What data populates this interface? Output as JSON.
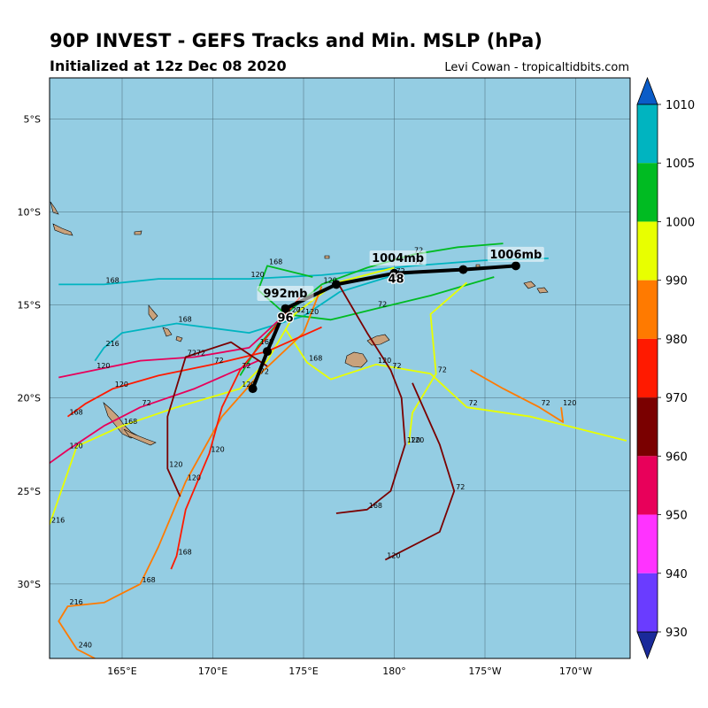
{
  "header": {
    "title": "90P INVEST - GEFS Tracks and Min. MSLP (hPa)",
    "init": "Initialized at 12z Dec 08 2020",
    "credit": "Levi Cowan - tropicaltidbits.com"
  },
  "map": {
    "ocean_color": "#94cde3",
    "land_color": "#c9a27c",
    "lat_ticks": [
      "5°S",
      "10°S",
      "15°S",
      "20°S",
      "25°S",
      "30°S"
    ],
    "lon_ticks": [
      "165°E",
      "170°E",
      "175°E",
      "180°",
      "175°W",
      "170°W"
    ],
    "minima_labels": [
      {
        "text": "1004mb",
        "lon": 180.2,
        "lat": -12.6
      },
      {
        "text": "1006mb",
        "lon": 186.7,
        "lat": -12.4
      },
      {
        "text": "992mb",
        "lon": 174.0,
        "lat": -14.5
      }
    ],
    "ensemble_mean_hour_labels": [
      {
        "text": "48",
        "lon": 180.1,
        "lat": -13.8
      },
      {
        "text": "96",
        "lon": 174.0,
        "lat": -15.9
      }
    ],
    "mean_track": [
      {
        "lon": 186.7,
        "lat": -12.9
      },
      {
        "lon": 183.8,
        "lat": -13.1
      },
      {
        "lon": 180.0,
        "lat": -13.3
      },
      {
        "lon": 176.8,
        "lat": -13.9
      },
      {
        "lon": 174.0,
        "lat": -15.2
      },
      {
        "lon": 173.0,
        "lat": -17.5
      },
      {
        "lon": 172.2,
        "lat": -19.5
      }
    ],
    "hour_label_samples": [
      "24",
      "48",
      "72",
      "96",
      "120",
      "144",
      "168",
      "192",
      "216",
      "240"
    ]
  },
  "colorbar": {
    "ticks": [
      "1010",
      "1005",
      "1000",
      "990",
      "980",
      "970",
      "960",
      "950",
      "940",
      "930"
    ],
    "bands": [
      "#1a2a9a",
      "#6a3cff",
      "#ff33ff",
      "#e8005a",
      "#7a0000",
      "#ff1a00",
      "#ff7a00",
      "#e8ff00",
      "#00bb22",
      "#00b4c0",
      "#0a5cc8"
    ]
  },
  "chart_data": {
    "type": "map-tracks",
    "title": "90P INVEST - GEFS Tracks and Min. MSLP (hPa)",
    "subtitle": "Initialized at 12z Dec 08 2020",
    "lon_range": [
      161,
      193
    ],
    "lat_range": [
      -34,
      -2.8
    ],
    "colorbar_hpa": [
      1010,
      1005,
      1000,
      990,
      980,
      970,
      960,
      950,
      940,
      930
    ],
    "series": [
      {
        "color": "#00b4c0",
        "points": [
          [
            186.7,
            -12.9
          ],
          [
            183.0,
            -13.1
          ],
          [
            180.0,
            -13.4
          ],
          [
            177.0,
            -14.3
          ],
          [
            175.0,
            -15.6
          ],
          [
            172.0,
            -16.5
          ],
          [
            168.0,
            -16.0
          ],
          [
            165.0,
            -16.5
          ],
          [
            164.0,
            -17.3
          ],
          [
            163.5,
            -18.0
          ]
        ]
      },
      {
        "color": "#00b4c0",
        "points": [
          [
            188.5,
            -12.5
          ],
          [
            185.0,
            -12.6
          ],
          [
            181.0,
            -12.9
          ],
          [
            176.0,
            -13.4
          ],
          [
            172.0,
            -13.6
          ],
          [
            167.0,
            -13.6
          ],
          [
            164.0,
            -13.9
          ],
          [
            161.5,
            -13.9
          ]
        ]
      },
      {
        "color": "#00bb22",
        "points": [
          [
            186.0,
            -11.7
          ],
          [
            183.5,
            -11.9
          ],
          [
            181.0,
            -12.3
          ],
          [
            178.5,
            -13.0
          ],
          [
            176.0,
            -13.9
          ],
          [
            174.0,
            -15.5
          ],
          [
            172.5,
            -17.2
          ],
          [
            171.5,
            -18.8
          ]
        ]
      },
      {
        "color": "#00bb22",
        "points": [
          [
            185.5,
            -13.5
          ],
          [
            182.0,
            -14.5
          ],
          [
            179.0,
            -15.2
          ],
          [
            176.5,
            -15.8
          ],
          [
            174.0,
            -15.5
          ],
          [
            172.5,
            -14.2
          ],
          [
            173.0,
            -12.9
          ],
          [
            175.5,
            -13.5
          ]
        ]
      },
      {
        "color": "#e8ff00",
        "points": [
          [
            184.0,
            -13.8
          ],
          [
            182.0,
            -15.5
          ],
          [
            182.3,
            -18.7
          ],
          [
            181.0,
            -20.8
          ],
          [
            180.8,
            -22.5
          ]
        ]
      },
      {
        "color": "#e8ff00",
        "points": [
          [
            192.8,
            -22.3
          ],
          [
            187.5,
            -21.0
          ],
          [
            184.0,
            -20.5
          ],
          [
            182.0,
            -18.7
          ],
          [
            179.0,
            -18.2
          ],
          [
            176.5,
            -19.0
          ],
          [
            175.2,
            -18.1
          ],
          [
            174.0,
            -16.3
          ]
        ]
      },
      {
        "color": "#e8ff00",
        "points": [
          [
            180.0,
            -13.0
          ],
          [
            176.8,
            -13.8
          ],
          [
            174.5,
            -15.5
          ],
          [
            173.0,
            -18.0
          ],
          [
            171.5,
            -19.5
          ],
          [
            168.0,
            -20.5
          ],
          [
            165.0,
            -21.5
          ],
          [
            162.5,
            -22.6
          ],
          [
            161.0,
            -26.8
          ]
        ]
      },
      {
        "color": "#ff7a00",
        "points": [
          [
            176.0,
            -14.0
          ],
          [
            175.0,
            -16.5
          ],
          [
            172.5,
            -18.8
          ],
          [
            170.5,
            -21.0
          ],
          [
            168.5,
            -24.5
          ],
          [
            167.0,
            -28.0
          ],
          [
            166.0,
            -30.0
          ],
          [
            164.0,
            -31.0
          ],
          [
            162.0,
            -31.2
          ],
          [
            161.5,
            -32.0
          ],
          [
            162.5,
            -33.5
          ],
          [
            163.5,
            -34.0
          ]
        ]
      },
      {
        "color": "#ff7a00",
        "points": [
          [
            184.2,
            -18.5
          ],
          [
            186.0,
            -19.5
          ],
          [
            188.0,
            -20.5
          ],
          [
            189.3,
            -21.3
          ],
          [
            189.2,
            -20.5
          ]
        ]
      },
      {
        "color": "#ff1a00",
        "points": [
          [
            174.8,
            -14.6
          ],
          [
            173.0,
            -16.7
          ],
          [
            171.5,
            -18.5
          ],
          [
            170.5,
            -20.5
          ],
          [
            169.8,
            -23.0
          ],
          [
            168.5,
            -26.0
          ],
          [
            168.0,
            -28.5
          ],
          [
            167.7,
            -29.2
          ]
        ]
      },
      {
        "color": "#ff1a00",
        "points": [
          [
            176.0,
            -16.2
          ],
          [
            173.0,
            -17.5
          ],
          [
            170.0,
            -18.2
          ],
          [
            167.0,
            -18.8
          ],
          [
            164.5,
            -19.5
          ],
          [
            163.0,
            -20.3
          ],
          [
            162.0,
            -21.0
          ]
        ]
      },
      {
        "color": "#e8005a",
        "points": [
          [
            174.0,
            -15.5
          ],
          [
            172.0,
            -17.3
          ],
          [
            169.0,
            -17.8
          ],
          [
            166.0,
            -18.0
          ],
          [
            163.5,
            -18.5
          ],
          [
            161.5,
            -18.9
          ]
        ]
      },
      {
        "color": "#e8005a",
        "points": [
          [
            172.5,
            -18.0
          ],
          [
            169.0,
            -19.5
          ],
          [
            166.0,
            -20.5
          ],
          [
            164.0,
            -21.5
          ],
          [
            162.0,
            -22.8
          ],
          [
            161.0,
            -23.5
          ]
        ]
      },
      {
        "color": "#7a0000",
        "points": [
          [
            177.0,
            -14.0
          ],
          [
            178.5,
            -16.5
          ],
          [
            179.8,
            -18.5
          ],
          [
            180.4,
            -20.0
          ],
          [
            180.6,
            -22.5
          ],
          [
            179.8,
            -25.0
          ],
          [
            178.5,
            -26.0
          ],
          [
            176.8,
            -26.2
          ]
        ]
      },
      {
        "color": "#7a0000",
        "points": [
          [
            181.0,
            -19.2
          ],
          [
            182.5,
            -22.5
          ],
          [
            183.3,
            -25.0
          ],
          [
            182.5,
            -27.2
          ],
          [
            179.5,
            -28.7
          ]
        ]
      },
      {
        "color": "#7a0000",
        "points": [
          [
            173.0,
            -18.3
          ],
          [
            171.0,
            -17.0
          ],
          [
            168.5,
            -17.8
          ],
          [
            167.5,
            -21.0
          ],
          [
            167.5,
            -23.8
          ],
          [
            168.2,
            -25.3
          ]
        ]
      }
    ]
  }
}
